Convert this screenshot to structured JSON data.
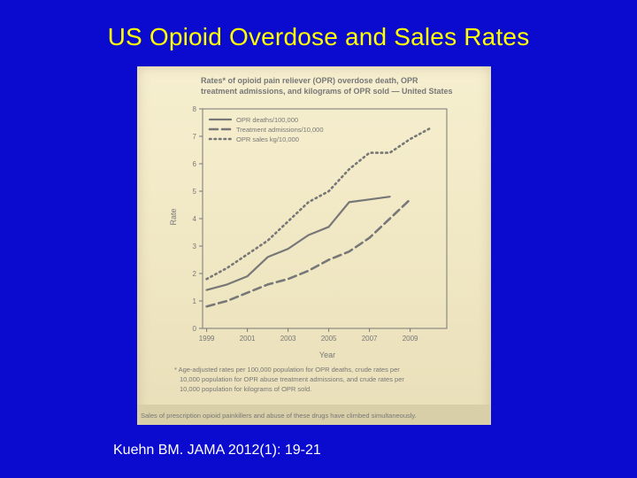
{
  "slide": {
    "title": "US Opioid Overdose and Sales Rates",
    "citation": "Kuehn BM. JAMA 2012(1): 19-21"
  },
  "colors": {
    "background": "#0b0bd0",
    "title": "#ffff00",
    "paper": "#f2ead0",
    "ink": "#777777"
  },
  "chart_data": {
    "type": "line",
    "title": "Rates* of opioid pain reliever (OPR) overdose death, OPR treatment admissions, and kilograms of OPR sold — United States",
    "xlabel": "Year",
    "ylabel": "Rate",
    "xlim": [
      1998.8,
      2010.8
    ],
    "ylim": [
      0,
      8
    ],
    "x_ticks": [
      "1999",
      "2001",
      "2003",
      "2005",
      "2007",
      "2009"
    ],
    "y_ticks": [
      "0",
      "1",
      "2",
      "3",
      "4",
      "5",
      "6",
      "7",
      "8"
    ],
    "grid": false,
    "legend_position": "top-left",
    "series": [
      {
        "name": "OPR deaths/100,000",
        "style": "solid",
        "x": [
          1999,
          2000,
          2001,
          2002,
          2003,
          2004,
          2005,
          2006,
          2007,
          2008
        ],
        "y": [
          1.4,
          1.6,
          1.9,
          2.6,
          2.9,
          3.4,
          3.7,
          4.6,
          4.7,
          4.8
        ]
      },
      {
        "name": "Treatment admissions/10,000",
        "style": "dashed",
        "x": [
          1999,
          2000,
          2001,
          2002,
          2003,
          2004,
          2005,
          2006,
          2007,
          2008,
          2009
        ],
        "y": [
          0.8,
          1.0,
          1.3,
          1.6,
          1.8,
          2.1,
          2.5,
          2.8,
          3.3,
          4.0,
          4.7
        ]
      },
      {
        "name": "OPR sales kg/10,000",
        "style": "dotted",
        "x": [
          1999,
          2000,
          2001,
          2002,
          2003,
          2004,
          2005,
          2006,
          2007,
          2008,
          2009,
          2010
        ],
        "y": [
          1.8,
          2.2,
          2.7,
          3.2,
          3.9,
          4.6,
          5.0,
          5.8,
          6.4,
          6.4,
          6.9,
          7.3
        ]
      }
    ],
    "footnote": [
      "* Age-adjusted rates per 100,000 population for OPR deaths, crude rates per",
      "10,000 population for OPR abuse treatment admissions, and crude rates per",
      "10,000 population for kilograms of OPR sold."
    ],
    "caption": "Sales of prescription opioid painkillers and abuse of these drugs have climbed simultaneously."
  }
}
